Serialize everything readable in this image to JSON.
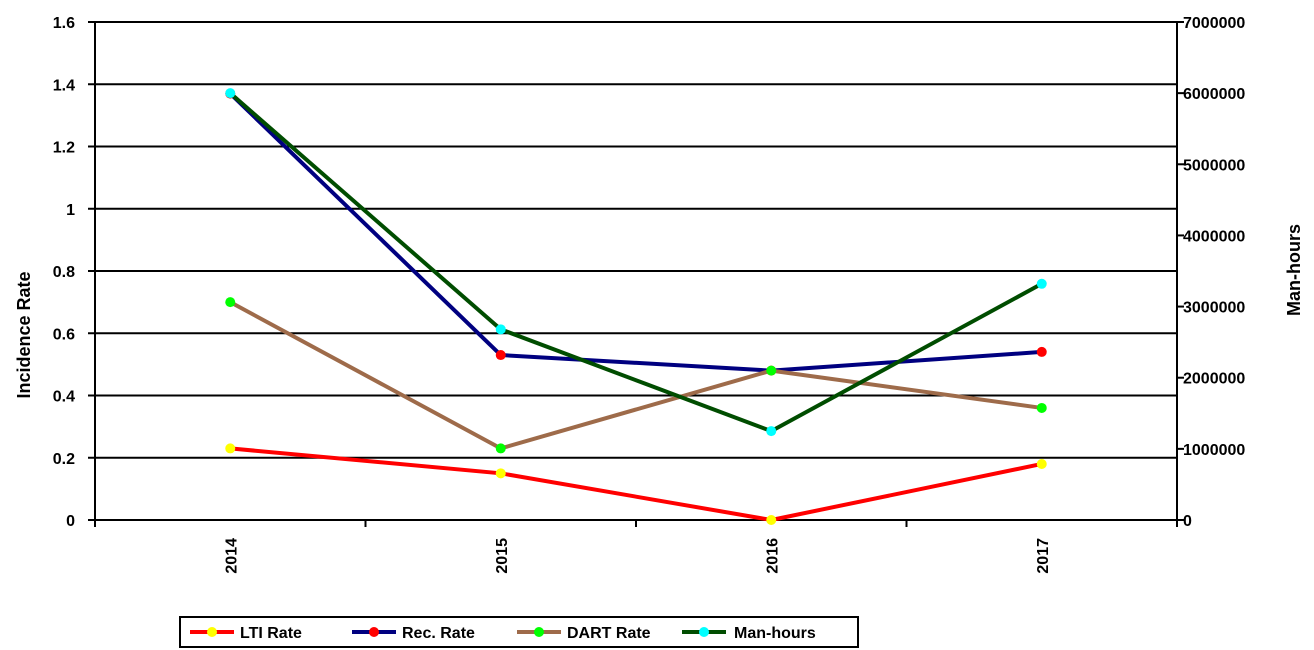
{
  "chart_data": {
    "type": "line",
    "title": "",
    "categories": [
      "2014",
      "2015",
      "2016",
      "2017"
    ],
    "y_left": {
      "label": "Incidence Rate",
      "range": [
        0,
        1.6
      ],
      "ticks": [
        "0",
        "0.2",
        "0.4",
        "0.6",
        "0.8",
        "1",
        "1.2",
        "1.4",
        "1.6"
      ]
    },
    "y_right": {
      "label": "Man-hours",
      "range": [
        0,
        7000000
      ],
      "ticks": [
        "0",
        "1000000",
        "2000000",
        "3000000",
        "4000000",
        "5000000",
        "6000000",
        "7000000"
      ]
    },
    "grid": true,
    "legend_position": "bottom",
    "series": [
      {
        "name": "LTI Rate",
        "axis": "left",
        "values": [
          0.23,
          0.15,
          0.0,
          0.18
        ],
        "line_color": "#ff0000",
        "marker_color": "#ffff00"
      },
      {
        "name": "Rec. Rate",
        "axis": "left",
        "values": [
          1.37,
          0.53,
          0.48,
          0.54
        ],
        "line_color": "#000080",
        "marker_color": "#ff0000"
      },
      {
        "name": "DART Rate",
        "axis": "left",
        "values": [
          0.7,
          0.23,
          0.48,
          0.36
        ],
        "line_color": "#9e6b4a",
        "marker_color": "#00ff00"
      },
      {
        "name": "Man-hours",
        "axis": "right",
        "values": [
          6000000,
          2680000,
          1250000,
          3320000
        ],
        "line_color": "#004d00",
        "marker_color": "#00ffff"
      }
    ]
  }
}
